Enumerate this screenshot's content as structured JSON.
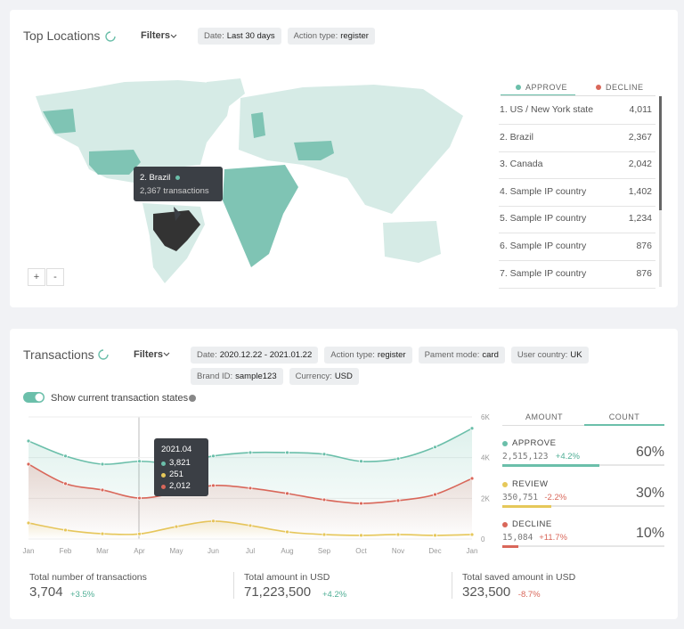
{
  "locations": {
    "title": "Top Locations",
    "filters": "Filters",
    "chips": [
      {
        "key": "Date:",
        "value": "Last 30 days"
      },
      {
        "key": "Action type:",
        "value": "register"
      }
    ],
    "tabs": [
      {
        "label": "APPROVE",
        "color": "#6bbfaa"
      },
      {
        "label": "DECLINE",
        "color": "#d9675a"
      }
    ],
    "tooltip": {
      "title": "2. Brazil",
      "text": "2,367 transactions"
    },
    "zoom": [
      "+",
      "-"
    ],
    "rows": [
      {
        "label": "1. US / New York state",
        "value": "4,011"
      },
      {
        "label": "2. Brazil",
        "value": "2,367"
      },
      {
        "label": "3. Canada",
        "value": "2,042"
      },
      {
        "label": "4. Sample IP country",
        "value": "1,402"
      },
      {
        "label": "5. Sample IP country",
        "value": "1,234"
      },
      {
        "label": "6. Sample IP country",
        "value": "876"
      },
      {
        "label": "7. Sample IP country",
        "value": "876"
      }
    ]
  },
  "transactions": {
    "title": "Transactions",
    "filters": "Filters",
    "chips": [
      {
        "key": "Date:",
        "value": "2020.12.22 - 2021.01.22"
      },
      {
        "key": "Action type:",
        "value": "register"
      },
      {
        "key": "Pament mode:",
        "value": "card"
      },
      {
        "key": "User country:",
        "value": "UK"
      },
      {
        "key": "Brand ID:",
        "value": "sample123"
      },
      {
        "key": "Currency:",
        "value": "USD"
      }
    ],
    "toggle": "Show current transaction states",
    "tabs": [
      "AMOUNT",
      "COUNT"
    ],
    "tooltip": {
      "title": "2021.04",
      "values": [
        "3,821",
        "251",
        "2,012"
      ]
    },
    "states": [
      {
        "count": "2,515,123",
        "change": "+4.2%",
        "change_color": "#4fae95",
        "percent": {
          "value": 60,
          "label": "60%"
        }
      },
      {
        "count": "350,751",
        "change": "-2.2%",
        "change_color": "#d9675a",
        "percent": {
          "value": 30,
          "label": "30%"
        }
      },
      {
        "count": "15,084",
        "change": "+11.7%",
        "change_color": "#d9675a",
        "percent": {
          "value": 10,
          "label": "10%"
        }
      }
    ],
    "totals": [
      {
        "label": "Total number of transactions",
        "value": "3,704",
        "change": "+3.5%"
      },
      {
        "label": "Total amount in USD",
        "value": "71,223,500",
        "change": "+4.2%"
      },
      {
        "label": "Total saved amount in USD",
        "value": "323,500",
        "change": "-8.7%"
      }
    ]
  },
  "chart_data": {
    "type": "line",
    "categories": [
      "Jan",
      "Feb",
      "Mar",
      "Apr",
      "May",
      "Jun",
      "Jul",
      "Aug",
      "Sep",
      "Oct",
      "Nov",
      "Dec",
      "Jan"
    ],
    "ylim": [
      0,
      6000
    ],
    "yticks": [
      0,
      {
        "value": 2000,
        "label": "2K"
      },
      {
        "value": 4000,
        "label": "4K"
      },
      {
        "value": 6000,
        "label": "6K"
      }
    ],
    "grid": true,
    "series": [
      {
        "name": "APPROVE",
        "color": "#6bbfaa",
        "values": [
          4820,
          4080,
          3680,
          3821,
          3730,
          4080,
          4250,
          4250,
          4170,
          3820,
          3950,
          4520,
          5440
        ]
      },
      {
        "name": "REVIEW",
        "color": "#e6c85a",
        "values": [
          790,
          440,
          260,
          251,
          610,
          880,
          660,
          350,
          220,
          180,
          220,
          180,
          220
        ]
      },
      {
        "name": "DECLINE",
        "color": "#d9675a",
        "values": [
          3680,
          2720,
          2410,
          2012,
          2280,
          2630,
          2500,
          2240,
          1930,
          1750,
          1890,
          2190,
          2980
        ]
      }
    ]
  }
}
